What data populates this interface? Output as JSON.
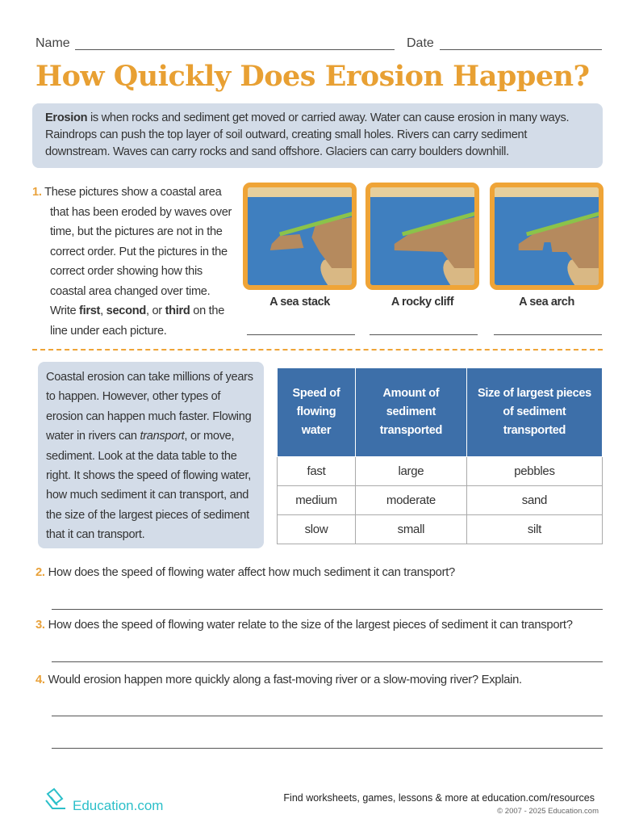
{
  "header": {
    "name_label": "Name",
    "date_label": "Date"
  },
  "title": "How Quickly Does Erosion Happen?",
  "intro": {
    "term": "Erosion",
    "text": " is when rocks and sediment get moved or carried away. Water can cause erosion in many ways. Raindrops can push the top layer of soil outward, creating small holes. Rivers can carry sediment downstream. Waves can carry rocks and sand offshore. Glaciers can carry boulders downhill."
  },
  "q1": {
    "number": "1.",
    "text_a": "These pictures show a coastal area that has been eroded by waves over time, but the pictures are not in the correct order. Put the pictures in the correct order showing how this coastal area changed over time. Write ",
    "first": "first",
    ", ": ", ",
    "second": "second",
    "or": ", or ",
    "third": "third",
    "text_b": " on the line under each picture.",
    "pictures": [
      {
        "caption": "A sea stack"
      },
      {
        "caption": "A rocky cliff"
      },
      {
        "caption": "A sea arch"
      }
    ]
  },
  "passage": {
    "text_a": "Coastal erosion can take millions of years to happen. However, other types of erosion can happen much faster. Flowing water in rivers can ",
    "italic": "transport",
    "text_b": ", or move, sediment. Look at the data table to the right. It shows the speed of flowing water, how much sediment it can transport, and the size of the largest pieces of sediment that it can transport."
  },
  "table": {
    "headers": [
      "Speed of flowing water",
      "Amount of sediment transported",
      "Size of largest pieces of sediment transported"
    ],
    "rows": [
      [
        "fast",
        "large",
        "pebbles"
      ],
      [
        "medium",
        "moderate",
        "sand"
      ],
      [
        "slow",
        "small",
        "silt"
      ]
    ]
  },
  "questions": [
    {
      "number": "2.",
      "text": "How does the speed of flowing water affect how much sediment it can transport?"
    },
    {
      "number": "3.",
      "text": "How does the speed of flowing water relate to the size of the largest pieces of sediment it can transport?"
    },
    {
      "number": "4.",
      "text": "Would erosion happen more quickly along a fast-moving river or a slow-moving river? Explain."
    }
  ],
  "footer": {
    "logo": "Education.com",
    "tagline": "Find worksheets, games, lessons & more at education.com/resources",
    "copyright": "© 2007 - 2025 Education.com"
  },
  "colors": {
    "accent": "#e9a23b",
    "table_header": "#3d6fa9",
    "box": "#d3dce8",
    "logo": "#2bbfc9"
  }
}
